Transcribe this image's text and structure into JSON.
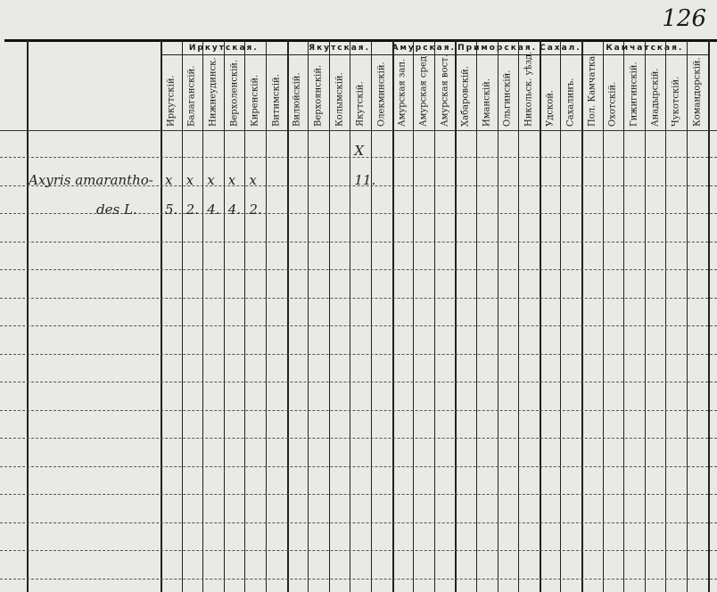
{
  "page_number": "126",
  "groups": [
    {
      "label": "Иркутская.",
      "columns": [
        "Иркутскій.",
        "Балаганскій.",
        "Нижнеудинск.",
        "Верхоленскій.",
        "Киренскій.",
        "Витимскій."
      ]
    },
    {
      "label": "Якутская.",
      "columns": [
        "Вилюйскій.",
        "Верхоянскій.",
        "Колымскій.",
        "Якутскій.",
        "Олекминскій."
      ]
    },
    {
      "label": "Амурская.",
      "columns": [
        "Амурская зап.",
        "Амурская сред.",
        "Амурская вост."
      ]
    },
    {
      "label": "Приморская.",
      "columns": [
        "Хабаровскій.",
        "Иманскій.",
        "Ольгинскій.",
        "Никольск. уѣзд."
      ]
    },
    {
      "label": "Сахал.",
      "columns": [
        "Удской.",
        "Сахалинъ."
      ]
    },
    {
      "label": "Камчатская.",
      "columns": [
        "Пол. Камчатка.",
        "Охотскій.",
        "Гижигинскій.",
        "Анадырскій.",
        "Чукотскій.",
        "Командорскій."
      ]
    }
  ],
  "entry": {
    "species_line1": "Axyris amarantho-",
    "species_line2": "des L.",
    "marks": [
      {
        "column": "Иркутскій.",
        "row1": "x",
        "row2": "5."
      },
      {
        "column": "Балаганскій.",
        "row1": "x",
        "row2": "2."
      },
      {
        "column": "Нижнеудинск.",
        "row1": "x",
        "row2": "4."
      },
      {
        "column": "Верхоленскій.",
        "row1": "x",
        "row2": "4."
      },
      {
        "column": "Киренскій.",
        "row1": "x",
        "row2": "2."
      },
      {
        "column": "Якутскій.",
        "row0": "X",
        "row1": "11."
      }
    ]
  }
}
